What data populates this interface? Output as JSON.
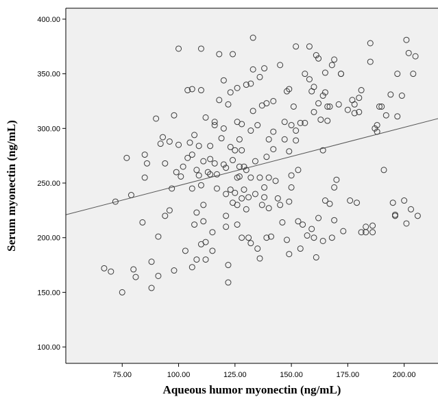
{
  "chart_data": {
    "type": "scatter",
    "title": "",
    "xlabel": "Aqueous humor myonectin (ng/mL)",
    "ylabel": "Serum myonectin (ng/mL)",
    "xlim": [
      50,
      215
    ],
    "ylim": [
      85,
      410
    ],
    "xticks": [
      "75.00",
      "100.00",
      "125.00",
      "150.00",
      "175.00",
      "200.00"
    ],
    "xtick_values": [
      75,
      100,
      125,
      150,
      175,
      200
    ],
    "yticks": [
      "100.00",
      "150.00",
      "200.00",
      "250.00",
      "300.00",
      "350.00",
      "400.00"
    ],
    "ytick_values": [
      100,
      150,
      200,
      250,
      300,
      350,
      400
    ],
    "grid": false,
    "background": "#f0f0f0",
    "marker_color": "#3a3a3a",
    "fit_line": {
      "x": [
        50,
        215
      ],
      "y": [
        221,
        309
      ]
    },
    "points": [
      [
        67,
        172
      ],
      [
        70,
        169
      ],
      [
        72,
        233
      ],
      [
        75,
        150
      ],
      [
        77,
        273
      ],
      [
        79,
        239
      ],
      [
        80,
        171
      ],
      [
        81,
        164
      ],
      [
        84,
        214
      ],
      [
        85,
        276
      ],
      [
        85,
        255
      ],
      [
        86,
        268
      ],
      [
        88,
        178
      ],
      [
        88,
        154
      ],
      [
        90,
        309
      ],
      [
        91,
        201
      ],
      [
        91,
        165
      ],
      [
        92,
        286
      ],
      [
        93,
        292
      ],
      [
        94,
        268
      ],
      [
        94,
        220
      ],
      [
        96,
        288
      ],
      [
        96,
        225
      ],
      [
        97,
        245
      ],
      [
        98,
        312
      ],
      [
        98,
        170
      ],
      [
        99,
        260
      ],
      [
        100,
        373
      ],
      [
        100,
        285
      ],
      [
        101,
        256
      ],
      [
        102,
        265
      ],
      [
        103,
        188
      ],
      [
        104,
        335
      ],
      [
        104,
        273
      ],
      [
        105,
        287
      ],
      [
        106,
        336
      ],
      [
        106,
        276
      ],
      [
        106,
        245
      ],
      [
        106,
        173
      ],
      [
        107,
        294
      ],
      [
        107,
        212
      ],
      [
        108,
        262
      ],
      [
        108,
        223
      ],
      [
        108,
        180
      ],
      [
        109,
        257
      ],
      [
        109,
        284
      ],
      [
        110,
        373
      ],
      [
        110,
        335
      ],
      [
        110,
        248
      ],
      [
        110,
        194
      ],
      [
        111,
        270
      ],
      [
        111,
        230
      ],
      [
        111,
        215
      ],
      [
        112,
        310
      ],
      [
        112,
        196
      ],
      [
        112,
        180
      ],
      [
        113,
        260
      ],
      [
        114,
        284
      ],
      [
        114,
        272
      ],
      [
        114,
        258
      ],
      [
        115,
        205
      ],
      [
        115,
        188
      ],
      [
        116,
        306
      ],
      [
        116,
        303
      ],
      [
        116,
        268
      ],
      [
        117,
        258
      ],
      [
        117,
        245
      ],
      [
        118,
        368
      ],
      [
        118,
        326
      ],
      [
        119,
        291
      ],
      [
        120,
        344
      ],
      [
        120,
        300
      ],
      [
        120,
        267
      ],
      [
        121,
        264
      ],
      [
        121,
        240
      ],
      [
        121,
        220
      ],
      [
        121,
        210
      ],
      [
        122,
        322
      ],
      [
        122,
        175
      ],
      [
        122,
        159
      ],
      [
        123,
        333
      ],
      [
        123,
        283
      ],
      [
        123,
        244
      ],
      [
        124,
        368
      ],
      [
        124,
        271
      ],
      [
        124,
        232
      ],
      [
        125,
        280
      ],
      [
        125,
        241
      ],
      [
        126,
        337
      ],
      [
        126,
        306
      ],
      [
        126,
        255
      ],
      [
        126,
        230
      ],
      [
        126,
        212
      ],
      [
        127,
        290
      ],
      [
        127,
        265
      ],
      [
        127,
        256
      ],
      [
        128,
        304
      ],
      [
        128,
        280
      ],
      [
        128,
        236
      ],
      [
        128,
        200
      ],
      [
        129,
        265
      ],
      [
        129,
        244
      ],
      [
        130,
        340
      ],
      [
        130,
        262
      ],
      [
        130,
        226
      ],
      [
        131,
        237
      ],
      [
        131,
        200
      ],
      [
        132,
        341
      ],
      [
        132,
        298
      ],
      [
        132,
        255
      ],
      [
        132,
        195
      ],
      [
        133,
        383
      ],
      [
        133,
        354
      ],
      [
        133,
        316
      ],
      [
        134,
        270
      ],
      [
        134,
        240
      ],
      [
        135,
        303
      ],
      [
        135,
        190
      ],
      [
        136,
        347
      ],
      [
        136,
        255
      ],
      [
        136,
        181
      ],
      [
        137,
        321
      ],
      [
        137,
        230
      ],
      [
        138,
        355
      ],
      [
        138,
        246
      ],
      [
        138,
        237
      ],
      [
        139,
        323
      ],
      [
        139,
        274
      ],
      [
        139,
        200
      ],
      [
        140,
        290
      ],
      [
        140,
        255
      ],
      [
        140,
        227
      ],
      [
        141,
        201
      ],
      [
        142,
        325
      ],
      [
        142,
        297
      ],
      [
        142,
        281
      ],
      [
        143,
        252
      ],
      [
        144,
        236
      ],
      [
        145,
        358
      ],
      [
        145,
        230
      ],
      [
        146,
        214
      ],
      [
        147,
        306
      ],
      [
        147,
        290
      ],
      [
        148,
        334
      ],
      [
        148,
        198
      ],
      [
        149,
        336
      ],
      [
        149,
        279
      ],
      [
        149,
        233
      ],
      [
        149,
        185
      ],
      [
        150,
        303
      ],
      [
        150,
        257
      ],
      [
        150,
        246
      ],
      [
        151,
        320
      ],
      [
        152,
        375
      ],
      [
        152,
        298
      ],
      [
        152,
        289
      ],
      [
        153,
        262
      ],
      [
        153,
        215
      ],
      [
        154,
        305
      ],
      [
        154,
        190
      ],
      [
        155,
        212
      ],
      [
        156,
        350
      ],
      [
        156,
        305
      ],
      [
        157,
        202
      ],
      [
        158,
        375
      ],
      [
        158,
        345
      ],
      [
        159,
        334
      ],
      [
        159,
        208
      ],
      [
        160,
        338
      ],
      [
        160,
        315
      ],
      [
        160,
        200
      ],
      [
        161,
        367
      ],
      [
        161,
        182
      ],
      [
        162,
        364
      ],
      [
        162,
        323
      ],
      [
        162,
        218
      ],
      [
        163,
        308
      ],
      [
        164,
        330
      ],
      [
        164,
        280
      ],
      [
        164,
        197
      ],
      [
        165,
        351
      ],
      [
        165,
        333
      ],
      [
        165,
        234
      ],
      [
        166,
        320
      ],
      [
        166,
        307
      ],
      [
        167,
        320
      ],
      [
        167,
        231
      ],
      [
        168,
        200
      ],
      [
        168,
        358
      ],
      [
        169,
        363
      ],
      [
        169,
        246
      ],
      [
        169,
        216
      ],
      [
        170,
        253
      ],
      [
        171,
        322
      ],
      [
        172,
        350
      ],
      [
        172,
        350
      ],
      [
        173,
        206
      ],
      [
        175,
        317
      ],
      [
        176,
        234
      ],
      [
        177,
        326
      ],
      [
        178,
        314
      ],
      [
        178,
        322
      ],
      [
        179,
        232
      ],
      [
        180,
        315
      ],
      [
        180,
        328
      ],
      [
        181,
        335
      ],
      [
        181,
        205
      ],
      [
        183,
        205
      ],
      [
        183,
        210
      ],
      [
        185,
        378
      ],
      [
        185,
        361
      ],
      [
        186,
        211
      ],
      [
        186,
        205
      ],
      [
        187,
        300
      ],
      [
        188,
        303
      ],
      [
        188,
        297
      ],
      [
        189,
        320
      ],
      [
        190,
        320
      ],
      [
        191,
        262
      ],
      [
        192,
        312
      ],
      [
        194,
        331
      ],
      [
        195,
        232
      ],
      [
        196,
        220
      ],
      [
        196,
        221
      ],
      [
        197,
        311
      ],
      [
        197,
        350
      ],
      [
        199,
        330
      ],
      [
        200,
        234
      ],
      [
        201,
        381
      ],
      [
        201,
        213
      ],
      [
        202,
        369
      ],
      [
        203,
        226
      ],
      [
        204,
        350
      ],
      [
        205,
        366
      ],
      [
        206,
        220
      ]
    ]
  }
}
